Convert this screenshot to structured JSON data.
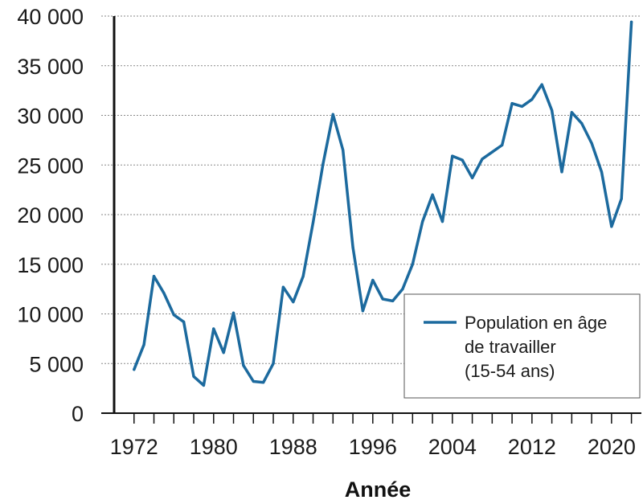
{
  "chart_data": {
    "type": "line",
    "title": "",
    "xlabel": "Année",
    "ylabel": "",
    "xlim": [
      1970,
      2023
    ],
    "ylim": [
      0,
      40000
    ],
    "grid": true,
    "legend_position": "bottom-right",
    "x_ticks": [
      1972,
      1980,
      1988,
      1996,
      2004,
      2012,
      2020
    ],
    "y_ticks": [
      {
        "value": 0,
        "label": "0"
      },
      {
        "value": 5000,
        "label": "5 000"
      },
      {
        "value": 10000,
        "label": "10 000"
      },
      {
        "value": 15000,
        "label": "15 000"
      },
      {
        "value": 20000,
        "label": "20 000"
      },
      {
        "value": 25000,
        "label": "25 000"
      },
      {
        "value": 30000,
        "label": "30 000"
      },
      {
        "value": 35000,
        "label": "35 000"
      },
      {
        "value": 40000,
        "label": "40 000"
      }
    ],
    "series": [
      {
        "name": "Population en âge de travailler (15-54 ans)",
        "legend_lines": [
          "Population en âge",
          "de travailler",
          "(15-54 ans)"
        ],
        "color": "#1c6a9e",
        "x": [
          1972,
          1973,
          1974,
          1975,
          1976,
          1977,
          1978,
          1979,
          1980,
          1981,
          1982,
          1983,
          1984,
          1985,
          1986,
          1987,
          1988,
          1989,
          1990,
          1991,
          1992,
          1993,
          1994,
          1995,
          1996,
          1997,
          1998,
          1999,
          2000,
          2001,
          2002,
          2003,
          2004,
          2005,
          2006,
          2007,
          2008,
          2009,
          2010,
          2011,
          2012,
          2013,
          2014,
          2015,
          2016,
          2017,
          2018,
          2019,
          2020,
          2021,
          2022
        ],
        "values": [
          4400,
          6900,
          13800,
          12100,
          9900,
          9200,
          3700,
          2800,
          8500,
          6100,
          10100,
          4800,
          3200,
          3100,
          5000,
          12700,
          11200,
          13800,
          19200,
          25100,
          30100,
          26500,
          16700,
          10300,
          13400,
          11500,
          11300,
          12500,
          15000,
          19300,
          22000,
          19300,
          25900,
          25500,
          23700,
          25600,
          26300,
          27000,
          31200,
          30900,
          31600,
          33100,
          30500,
          24300,
          30300,
          29200,
          27200,
          24300,
          18800,
          21600,
          39400
        ]
      }
    ]
  }
}
